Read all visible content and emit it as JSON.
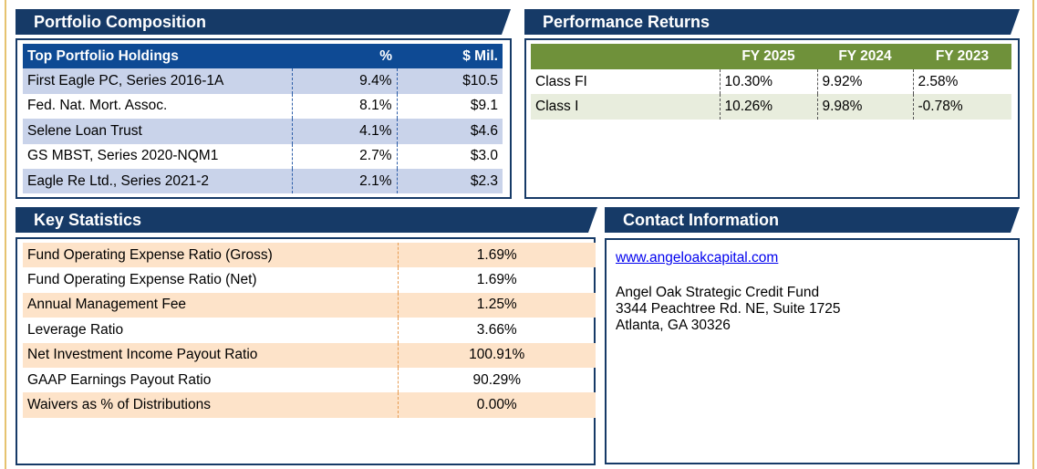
{
  "portfolio": {
    "title": "Portfolio Composition",
    "headers": [
      "Top Portfolio Holdings",
      "%",
      "$ Mil."
    ],
    "rows": [
      {
        "name": "First Eagle PC, Series 2016-1A",
        "pct": "9.4%",
        "mil": "$10.5"
      },
      {
        "name": "Fed. Nat. Mort. Assoc.",
        "pct": "8.1%",
        "mil": "$9.1"
      },
      {
        "name": "Selene Loan Trust",
        "pct": "4.1%",
        "mil": "$4.6"
      },
      {
        "name": "GS MBST, Series 2020-NQM1",
        "pct": "2.7%",
        "mil": "$3.0"
      },
      {
        "name": "Eagle Re Ltd., Series 2021-2",
        "pct": "2.1%",
        "mil": "$2.3"
      }
    ]
  },
  "performance": {
    "title": "Performance Returns",
    "headers": [
      "",
      "FY 2025",
      "FY 2024",
      "FY 2023"
    ],
    "rows": [
      {
        "name": "Class FI",
        "fy2025": "10.30%",
        "fy2024": "9.92%",
        "fy2023": "2.58%"
      },
      {
        "name": "Class I",
        "fy2025": "10.26%",
        "fy2024": "9.98%",
        "fy2023": "-0.78%"
      }
    ]
  },
  "stats": {
    "title": "Key Statistics",
    "rows": [
      {
        "label": "Fund Operating Expense Ratio (Gross)",
        "value": "1.69%"
      },
      {
        "label": "Fund Operating Expense Ratio (Net)",
        "value": "1.69%"
      },
      {
        "label": "Annual Management Fee",
        "value": "1.25%"
      },
      {
        "label": "Leverage Ratio",
        "value": "3.66%"
      },
      {
        "label": "Net Investment Income Payout Ratio",
        "value": "100.91%"
      },
      {
        "label": "GAAP Earnings Payout Ratio",
        "value": "90.29%"
      },
      {
        "label": "Waivers as % of Distributions",
        "value": "0.00%"
      }
    ]
  },
  "contact": {
    "title": "Contact Information",
    "website": "www.angeloakcapital.com",
    "name": "Angel Oak Strategic Credit Fund",
    "street": "3344 Peachtree Rd. NE, Suite 1725",
    "city": "Atlanta, GA 30326"
  },
  "colors": {
    "header_navy": "#163a67",
    "portfolio_header_blue": "#0e4a94",
    "portfolio_row_shade": "#c9d3ea",
    "performance_header_green": "#6f913a",
    "performance_row_shade": "#e8eddd",
    "stats_row_shade": "#fde3c9",
    "outer_rule_gold": "#e6c36f"
  }
}
